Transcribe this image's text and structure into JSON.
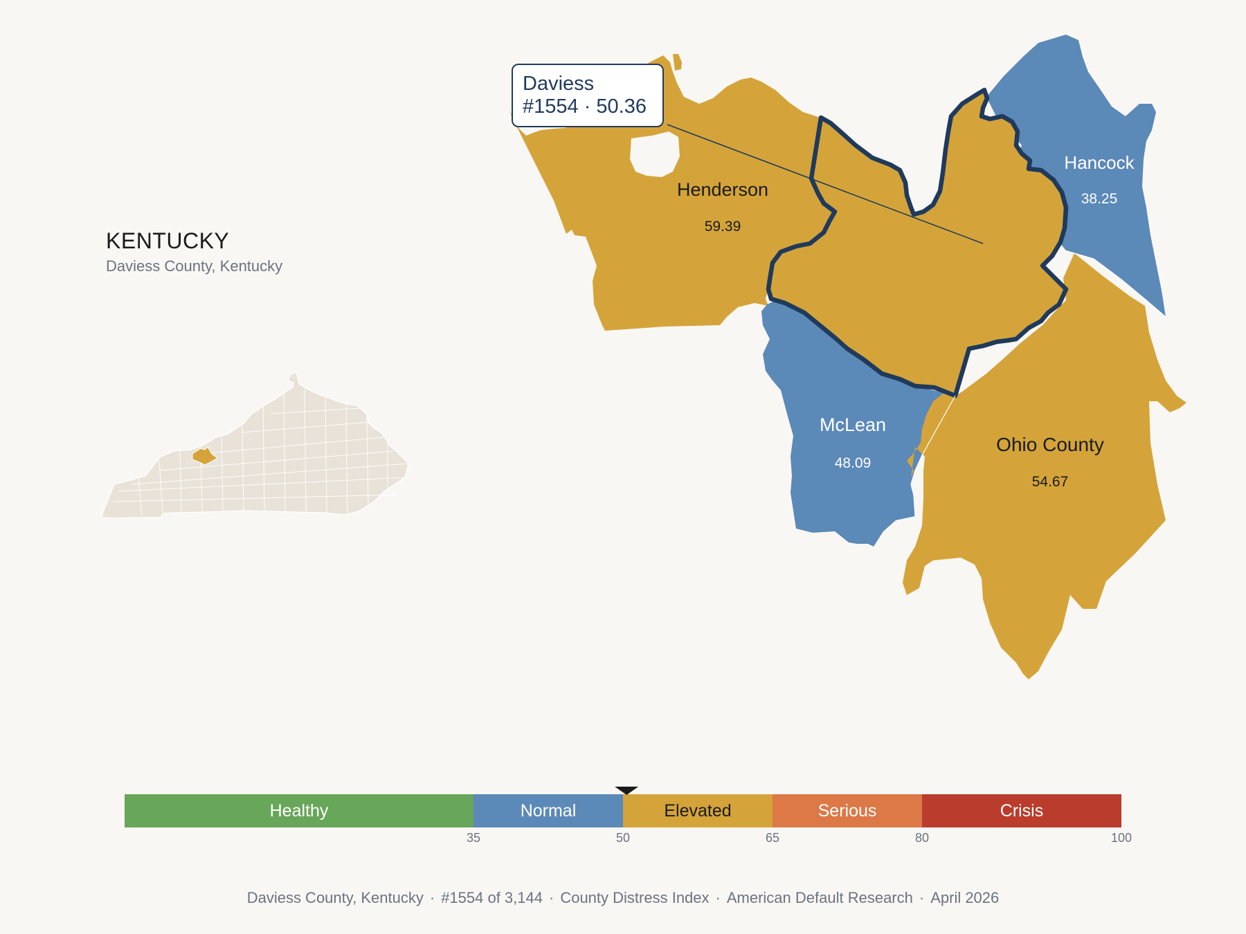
{
  "state": {
    "title": "KENTUCKY",
    "subtitle": "Daviess County, Kentucky"
  },
  "callout": {
    "name": "Daviess",
    "detail": "#1554 · 50.36"
  },
  "counties": [
    {
      "id": "henderson",
      "name": "Henderson",
      "score": "59.39",
      "category": "Elevated",
      "label_color": "#1a1a1a"
    },
    {
      "id": "daviess",
      "name": "Daviess",
      "score": "50.36",
      "category": "Elevated",
      "highlighted": true
    },
    {
      "id": "hancock",
      "name": "Hancock",
      "score": "38.25",
      "category": "Normal",
      "label_color": "#ffffff"
    },
    {
      "id": "mclean",
      "name": "McLean",
      "score": "48.09",
      "category": "Normal",
      "label_color": "#ffffff"
    },
    {
      "id": "ohio",
      "name": "Ohio County",
      "score": "54.67",
      "category": "Elevated",
      "label_color": "#1a1a1a"
    }
  ],
  "legend": {
    "min": 0,
    "max": 100,
    "marker_value": 50.36,
    "bands": [
      {
        "label": "Healthy",
        "from": 0,
        "to": 35,
        "color": "#68a659",
        "text_color": "#ffffff"
      },
      {
        "label": "Normal",
        "from": 35,
        "to": 50,
        "color": "#5b89b8",
        "text_color": "#ffffff"
      },
      {
        "label": "Elevated",
        "from": 50,
        "to": 65,
        "color": "#d4a43a",
        "text_color": "#1a1a1a"
      },
      {
        "label": "Serious",
        "from": 65,
        "to": 80,
        "color": "#dd7847",
        "text_color": "#ffffff"
      },
      {
        "label": "Crisis",
        "from": 80,
        "to": 100,
        "color": "#ba3c2c",
        "text_color": "#ffffff"
      }
    ],
    "ticks": [
      "35",
      "50",
      "65",
      "80",
      "100"
    ]
  },
  "footer": {
    "county": "Daviess County, Kentucky",
    "rank": "#1554 of 3,144",
    "index": "County Distress Index",
    "org": "American Default Research",
    "date": "April 2026",
    "separator": "·"
  },
  "colors": {
    "background": "#f9f7f4",
    "elevated": "#d4a43a",
    "normal": "#5b89b8",
    "highlight_stroke": "#1f3a5c",
    "state_fill": "#e8e2d8"
  }
}
